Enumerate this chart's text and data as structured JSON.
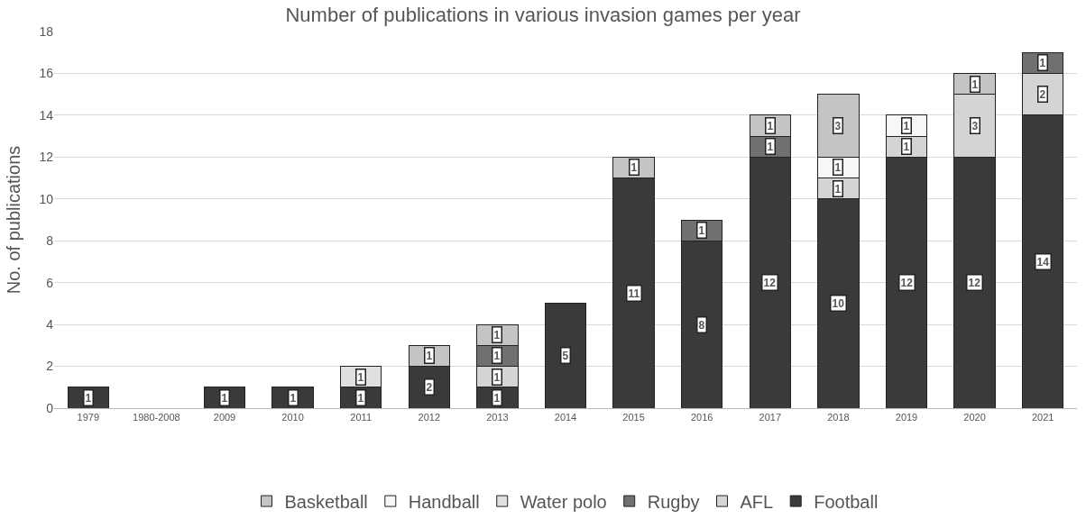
{
  "chart_data": {
    "type": "bar",
    "title": "Number of publications in various invasion games per year",
    "ylabel": "No. of publications",
    "categories": [
      "1979",
      "1980-2008",
      "2009",
      "2010",
      "2011",
      "2012",
      "2013",
      "2014",
      "2015",
      "2016",
      "2017",
      "2018",
      "2019",
      "2020",
      "2021"
    ],
    "stacked": true,
    "data_labels": true,
    "grid": "y",
    "legend": "bottom",
    "ylim": [
      0,
      18
    ],
    "yticks": [
      0,
      2,
      4,
      6,
      8,
      10,
      12,
      14,
      16,
      18
    ],
    "series": [
      {
        "name": "Football",
        "color": "#3a3a3a",
        "values": [
          1,
          null,
          1,
          1,
          1,
          2,
          1,
          5,
          11,
          8,
          12,
          10,
          12,
          12,
          14
        ]
      },
      {
        "name": "AFL",
        "color": "#d4d4d4",
        "values": [
          null,
          null,
          null,
          null,
          null,
          null,
          1,
          null,
          null,
          null,
          null,
          1,
          1,
          3,
          2
        ]
      },
      {
        "name": "Rugby",
        "color": "#707070",
        "values": [
          null,
          null,
          null,
          null,
          null,
          null,
          1,
          null,
          null,
          1,
          1,
          null,
          null,
          null,
          1
        ]
      },
      {
        "name": "Water polo",
        "color": "#e0e0e0",
        "values": [
          null,
          null,
          null,
          null,
          1,
          null,
          null,
          null,
          null,
          null,
          null,
          null,
          null,
          null,
          null
        ]
      },
      {
        "name": "Handball",
        "color": "#f7f7f7",
        "values": [
          null,
          null,
          null,
          null,
          null,
          null,
          null,
          null,
          null,
          null,
          null,
          1,
          1,
          null,
          null
        ]
      },
      {
        "name": "Basketball",
        "color": "#c4c4c4",
        "values": [
          null,
          null,
          null,
          null,
          null,
          1,
          1,
          null,
          1,
          null,
          1,
          3,
          null,
          1,
          null
        ]
      }
    ]
  }
}
